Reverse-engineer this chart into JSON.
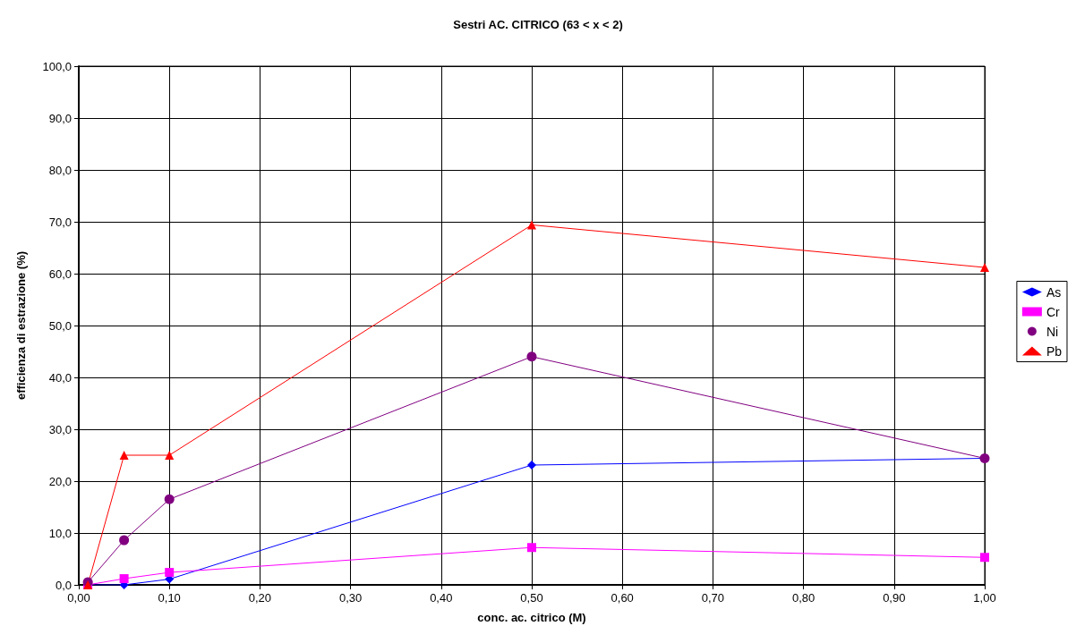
{
  "chart_data": {
    "type": "line",
    "title": "Sestri AC. CITRICO (63 < x < 2)",
    "xlabel": "conc. ac. citrico (M)",
    "ylabel": "efficienza di estrazione (%)",
    "x": [
      0.01,
      0.05,
      0.1,
      0.5,
      1.0
    ],
    "series": [
      {
        "name": "As",
        "color": "#0000ff",
        "marker": "diamond",
        "values": [
          0,
          0,
          1.1,
          23.1,
          24.4
        ]
      },
      {
        "name": "Cr",
        "color": "#ff00ff",
        "marker": "square",
        "values": [
          0,
          1.2,
          2.4,
          7.2,
          5.3
        ]
      },
      {
        "name": "Ni",
        "color": "#800080",
        "marker": "circle",
        "values": [
          0.5,
          8.6,
          16.5,
          44.0,
          24.4
        ]
      },
      {
        "name": "Pb",
        "color": "#ff0000",
        "marker": "triangle",
        "values": [
          0,
          25.0,
          25.0,
          69.4,
          61.2
        ]
      }
    ],
    "xlim": [
      0,
      1
    ],
    "xticks": [
      {
        "value": 0,
        "label": "0,00"
      },
      {
        "value": 0.1,
        "label": "0,10"
      },
      {
        "value": 0.2,
        "label": "0,20"
      },
      {
        "value": 0.3,
        "label": "0,30"
      },
      {
        "value": 0.4,
        "label": "0,40"
      },
      {
        "value": 0.5,
        "label": "0,50"
      },
      {
        "value": 0.6,
        "label": "0,60"
      },
      {
        "value": 0.7,
        "label": "0,70"
      },
      {
        "value": 0.8,
        "label": "0,80"
      },
      {
        "value": 0.9,
        "label": "0,90"
      },
      {
        "value": 1,
        "label": "1,00"
      }
    ],
    "ylim": [
      0,
      100
    ],
    "yticks": [
      {
        "value": 0,
        "label": "0,0"
      },
      {
        "value": 10,
        "label": "10,0"
      },
      {
        "value": 20,
        "label": "20,0"
      },
      {
        "value": 30,
        "label": "30,0"
      },
      {
        "value": 40,
        "label": "40,0"
      },
      {
        "value": 50,
        "label": "50,0"
      },
      {
        "value": 60,
        "label": "60,0"
      },
      {
        "value": 70,
        "label": "70,0"
      },
      {
        "value": 80,
        "label": "80,0"
      },
      {
        "value": 90,
        "label": "90,0"
      },
      {
        "value": 100,
        "label": "100,0"
      }
    ],
    "grid": true,
    "legend": "right",
    "line_style": "solid"
  }
}
